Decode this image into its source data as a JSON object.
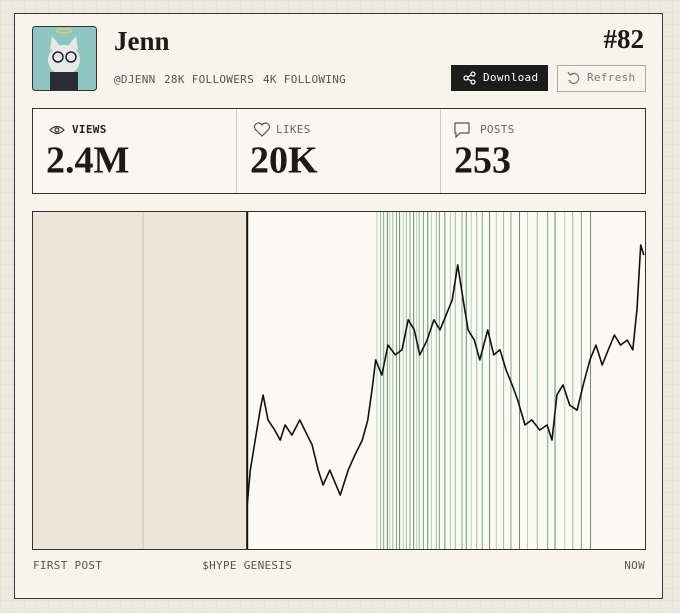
{
  "profile": {
    "name": "Jenn",
    "rank": "#82",
    "handle": "@DJENN",
    "followers": "28K FOLLOWERS",
    "following": "4K FOLLOWING"
  },
  "buttons": {
    "download": "Download",
    "refresh": "Refresh"
  },
  "stats": [
    {
      "label": "VIEWS",
      "value": "2.4M"
    },
    {
      "label": "LIKES",
      "value": "20K"
    },
    {
      "label": "POSTS",
      "value": "253"
    }
  ],
  "chart_data": {
    "type": "line",
    "color": "#111111",
    "marker_color": "#2e7d4f",
    "xlim": [
      0,
      100
    ],
    "ylim": [
      0,
      100
    ],
    "x_labels": [
      "FIRST POST",
      "$HYPE GENESIS",
      "NOW"
    ],
    "x": [
      35.0,
      35.5,
      36.3,
      37.1,
      37.6,
      38.4,
      39.5,
      40.4,
      41.2,
      42.3,
      43.6,
      44.4,
      45.6,
      46.6,
      47.4,
      48.5,
      50.2,
      51.5,
      52.6,
      53.8,
      54.7,
      55.4,
      56.0,
      57.0,
      58.0,
      59.2,
      60.3,
      61.3,
      62.3,
      63.2,
      64.4,
      65.5,
      66.5,
      67.5,
      68.5,
      69.4,
      70.3,
      71.1,
      72.1,
      73.0,
      74.3,
      75.3,
      76.3,
      77.3,
      78.3,
      79.2,
      80.4,
      81.5,
      82.8,
      84.0,
      84.8,
      85.6,
      86.6,
      87.7,
      88.9,
      89.9,
      91.0,
      92.0,
      93.0,
      94.0,
      95.0,
      96.0,
      97.1,
      98.0,
      98.7,
      99.3,
      99.8
    ],
    "values": [
      13.1,
      23.4,
      32.3,
      41.2,
      45.7,
      38.3,
      35.3,
      32.3,
      36.8,
      33.8,
      38.3,
      35.3,
      30.9,
      23.4,
      19.0,
      23.4,
      16.0,
      23.4,
      27.9,
      32.3,
      38.3,
      47.2,
      56.1,
      51.6,
      60.5,
      57.6,
      59.1,
      68.0,
      65.0,
      57.6,
      62.0,
      68.0,
      65.0,
      69.4,
      73.9,
      84.3,
      73.9,
      65.0,
      62.0,
      56.1,
      65.0,
      57.6,
      59.1,
      53.1,
      48.7,
      44.2,
      36.8,
      38.3,
      35.3,
      36.8,
      32.3,
      45.7,
      48.7,
      42.7,
      41.2,
      48.7,
      56.1,
      60.5,
      54.6,
      59.1,
      63.5,
      60.5,
      62.0,
      59.1,
      71.2,
      90.2,
      87.2
    ],
    "markers": [
      56.2,
      56.8,
      57.3,
      57.9,
      58.3,
      58.8,
      59.4,
      59.9,
      60.5,
      61.0,
      61.6,
      62.2,
      62.7,
      63.1,
      63.8,
      64.5,
      65.1,
      65.9,
      66.4,
      67.3,
      68.2,
      69.0,
      70.1,
      70.8,
      71.6,
      72.5,
      73.4,
      74.6,
      75.7,
      76.9,
      78.1,
      79.5,
      80.8,
      82.4,
      84.1,
      85.3,
      86.9,
      88.2,
      89.6,
      91.1
    ]
  }
}
